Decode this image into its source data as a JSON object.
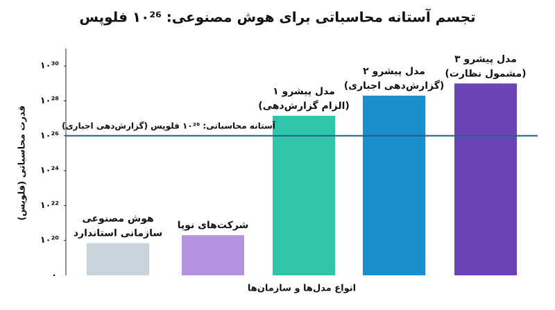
{
  "chart_data": {
    "type": "bar",
    "title": "تجسم آستانه محاسباتی برای هوش مصنوعی: ۱۰²⁶ فلوپس",
    "y_label": "قدرت محاسباتی (فلوپس)",
    "x_label": "انواع مدل‌ها و سازمان‌ها",
    "log_scale": true,
    "grid": false,
    "categories": [
      [
        "هوش مصنوعی",
        "سازمانی استاندارد"
      ],
      [
        "شرکت‌های نوپا"
      ],
      [
        "مدل پیشرو ۱",
        "(الزام گزارش‌دهی)"
      ],
      [
        "مدل پیشرو ۲",
        "(گزارش‌دهی اجباری)"
      ],
      [
        "مدل پیشرو ۳",
        "(مشمول نظارت)"
      ]
    ],
    "values": [
      7e+19,
      2e+20,
      1.4e+27,
      2e+28,
      1e+29
    ],
    "colors": [
      "#c8d3db",
      "#b593e0",
      "#2ec5a9",
      "#1b8fcd",
      "#6b45b8"
    ],
    "ylim": [
      1e+18,
      1e+31
    ],
    "y_origin_label": "۰",
    "yticks": [
      {
        "value": 1e+20,
        "label": "۱۰²⁰"
      },
      {
        "value": 1e+22,
        "label": "۱۰²²"
      },
      {
        "value": 1e+24,
        "label": "۱۰²⁴"
      },
      {
        "value": 1e+26,
        "label": "۱۰²⁶"
      },
      {
        "value": 1e+28,
        "label": "۱۰²⁸"
      },
      {
        "value": 1e+30,
        "label": "۱۰³⁰"
      }
    ],
    "threshold": {
      "value": 1e+26,
      "label": "آستانه محاسباتی: ۱۰²⁶ فلوپس (گزارش‌دهی اجباری)",
      "color": "#1f5f80"
    }
  }
}
